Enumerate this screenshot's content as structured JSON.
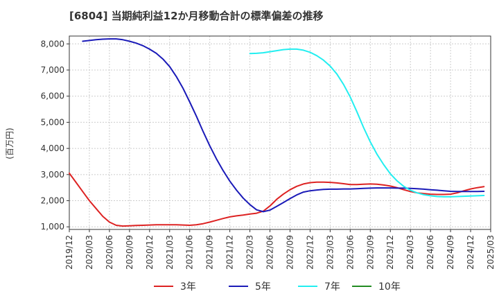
{
  "chart_data": {
    "type": "line",
    "title": "[6804]  当期純利益12か月移動合計の標準偏差の推移",
    "ylabel": "(百万円)",
    "xlabel": "",
    "ylim": [
      900,
      8300
    ],
    "yticks": [
      1000,
      2000,
      3000,
      4000,
      5000,
      6000,
      7000,
      8000
    ],
    "ytick_labels": [
      "1,000",
      "2,000",
      "3,000",
      "4,000",
      "5,000",
      "6,000",
      "7,000",
      "8,000"
    ],
    "x_range": [
      "2019/12",
      "2025/03"
    ],
    "xtick_labels": [
      "2019/12",
      "2020/03",
      "2020/06",
      "2020/09",
      "2020/12",
      "2021/03",
      "2021/06",
      "2021/09",
      "2021/12",
      "2022/03",
      "2022/06",
      "2022/09",
      "2022/12",
      "2023/03",
      "2023/06",
      "2023/09",
      "2023/12",
      "2024/03",
      "2024/06",
      "2024/09",
      "2024/12",
      "2025/03"
    ],
    "grid": true,
    "legend_position": "bottom",
    "series": [
      {
        "name": "3年",
        "color": "#dd2222",
        "points": [
          [
            "2019/12",
            3050
          ],
          [
            "2020/01",
            2700
          ],
          [
            "2020/02",
            2350
          ],
          [
            "2020/03",
            2000
          ],
          [
            "2020/04",
            1700
          ],
          [
            "2020/05",
            1400
          ],
          [
            "2020/06",
            1180
          ],
          [
            "2020/07",
            1060
          ],
          [
            "2020/08",
            1030
          ],
          [
            "2020/09",
            1040
          ],
          [
            "2020/10",
            1050
          ],
          [
            "2020/11",
            1060
          ],
          [
            "2020/12",
            1070
          ],
          [
            "2021/01",
            1080
          ],
          [
            "2021/02",
            1080
          ],
          [
            "2021/03",
            1080
          ],
          [
            "2021/04",
            1080
          ],
          [
            "2021/05",
            1070
          ],
          [
            "2021/06",
            1060
          ],
          [
            "2021/07",
            1080
          ],
          [
            "2021/08",
            1120
          ],
          [
            "2021/09",
            1180
          ],
          [
            "2021/10",
            1250
          ],
          [
            "2021/11",
            1320
          ],
          [
            "2021/12",
            1380
          ],
          [
            "2022/01",
            1420
          ],
          [
            "2022/02",
            1450
          ],
          [
            "2022/03",
            1490
          ],
          [
            "2022/04",
            1520
          ],
          [
            "2022/05",
            1600
          ],
          [
            "2022/06",
            1800
          ],
          [
            "2022/07",
            2050
          ],
          [
            "2022/08",
            2250
          ],
          [
            "2022/09",
            2420
          ],
          [
            "2022/10",
            2550
          ],
          [
            "2022/11",
            2640
          ],
          [
            "2022/12",
            2690
          ],
          [
            "2023/01",
            2710
          ],
          [
            "2023/02",
            2710
          ],
          [
            "2023/03",
            2700
          ],
          [
            "2023/04",
            2680
          ],
          [
            "2023/05",
            2650
          ],
          [
            "2023/06",
            2620
          ],
          [
            "2023/07",
            2620
          ],
          [
            "2023/08",
            2630
          ],
          [
            "2023/09",
            2640
          ],
          [
            "2023/10",
            2630
          ],
          [
            "2023/11",
            2600
          ],
          [
            "2023/12",
            2560
          ],
          [
            "2024/01",
            2500
          ],
          [
            "2024/02",
            2420
          ],
          [
            "2024/03",
            2350
          ],
          [
            "2024/04",
            2300
          ],
          [
            "2024/05",
            2270
          ],
          [
            "2024/06",
            2250
          ],
          [
            "2024/07",
            2240
          ],
          [
            "2024/08",
            2240
          ],
          [
            "2024/09",
            2250
          ],
          [
            "2024/10",
            2300
          ],
          [
            "2024/11",
            2380
          ],
          [
            "2024/12",
            2450
          ],
          [
            "2025/01",
            2500
          ],
          [
            "2025/02",
            2540
          ]
        ]
      },
      {
        "name": "5年",
        "color": "#1a1ab8",
        "points": [
          [
            "2019/12",
            null
          ],
          [
            "2020/01",
            null
          ],
          [
            "2020/02",
            8100
          ],
          [
            "2020/03",
            8130
          ],
          [
            "2020/04",
            8160
          ],
          [
            "2020/05",
            8180
          ],
          [
            "2020/06",
            8190
          ],
          [
            "2020/07",
            8190
          ],
          [
            "2020/08",
            8160
          ],
          [
            "2020/09",
            8100
          ],
          [
            "2020/10",
            8030
          ],
          [
            "2020/11",
            7930
          ],
          [
            "2020/12",
            7800
          ],
          [
            "2021/01",
            7640
          ],
          [
            "2021/02",
            7420
          ],
          [
            "2021/03",
            7130
          ],
          [
            "2021/04",
            6750
          ],
          [
            "2021/05",
            6300
          ],
          [
            "2021/06",
            5780
          ],
          [
            "2021/07",
            5230
          ],
          [
            "2021/08",
            4650
          ],
          [
            "2021/09",
            4100
          ],
          [
            "2021/10",
            3600
          ],
          [
            "2021/11",
            3150
          ],
          [
            "2021/12",
            2750
          ],
          [
            "2022/01",
            2400
          ],
          [
            "2022/02",
            2100
          ],
          [
            "2022/03",
            1850
          ],
          [
            "2022/04",
            1650
          ],
          [
            "2022/05",
            1580
          ],
          [
            "2022/06",
            1640
          ],
          [
            "2022/07",
            1780
          ],
          [
            "2022/08",
            1930
          ],
          [
            "2022/09",
            2080
          ],
          [
            "2022/10",
            2220
          ],
          [
            "2022/11",
            2330
          ],
          [
            "2022/12",
            2380
          ],
          [
            "2023/01",
            2410
          ],
          [
            "2023/02",
            2430
          ],
          [
            "2023/03",
            2440
          ],
          [
            "2023/04",
            2440
          ],
          [
            "2023/05",
            2450
          ],
          [
            "2023/06",
            2450
          ],
          [
            "2023/07",
            2460
          ],
          [
            "2023/08",
            2470
          ],
          [
            "2023/09",
            2480
          ],
          [
            "2023/10",
            2490
          ],
          [
            "2023/11",
            2490
          ],
          [
            "2023/12",
            2490
          ],
          [
            "2024/01",
            2480
          ],
          [
            "2024/02",
            2480
          ],
          [
            "2024/03",
            2470
          ],
          [
            "2024/04",
            2460
          ],
          [
            "2024/05",
            2440
          ],
          [
            "2024/06",
            2420
          ],
          [
            "2024/07",
            2400
          ],
          [
            "2024/08",
            2380
          ],
          [
            "2024/09",
            2360
          ],
          [
            "2024/10",
            2350
          ],
          [
            "2024/11",
            2350
          ],
          [
            "2024/12",
            2350
          ],
          [
            "2025/01",
            2350
          ],
          [
            "2025/02",
            2360
          ]
        ]
      },
      {
        "name": "7年",
        "color": "#22eef0",
        "points": [
          [
            "2022/03",
            7630
          ],
          [
            "2022/04",
            7640
          ],
          [
            "2022/05",
            7660
          ],
          [
            "2022/06",
            7700
          ],
          [
            "2022/07",
            7740
          ],
          [
            "2022/08",
            7780
          ],
          [
            "2022/09",
            7800
          ],
          [
            "2022/10",
            7800
          ],
          [
            "2022/11",
            7760
          ],
          [
            "2022/12",
            7680
          ],
          [
            "2023/01",
            7550
          ],
          [
            "2023/02",
            7380
          ],
          [
            "2023/03",
            7150
          ],
          [
            "2023/04",
            6850
          ],
          [
            "2023/05",
            6450
          ],
          [
            "2023/06",
            5970
          ],
          [
            "2023/07",
            5400
          ],
          [
            "2023/08",
            4800
          ],
          [
            "2023/09",
            4250
          ],
          [
            "2023/10",
            3780
          ],
          [
            "2023/11",
            3380
          ],
          [
            "2023/12",
            3030
          ],
          [
            "2024/01",
            2760
          ],
          [
            "2024/02",
            2550
          ],
          [
            "2024/03",
            2400
          ],
          [
            "2024/04",
            2300
          ],
          [
            "2024/05",
            2230
          ],
          [
            "2024/06",
            2190
          ],
          [
            "2024/07",
            2160
          ],
          [
            "2024/08",
            2150
          ],
          [
            "2024/09",
            2150
          ],
          [
            "2024/10",
            2160
          ],
          [
            "2024/11",
            2170
          ],
          [
            "2024/12",
            2180
          ],
          [
            "2025/01",
            2190
          ],
          [
            "2025/02",
            2200
          ]
        ]
      },
      {
        "name": "10年",
        "color": "#228b22",
        "points": []
      }
    ]
  }
}
